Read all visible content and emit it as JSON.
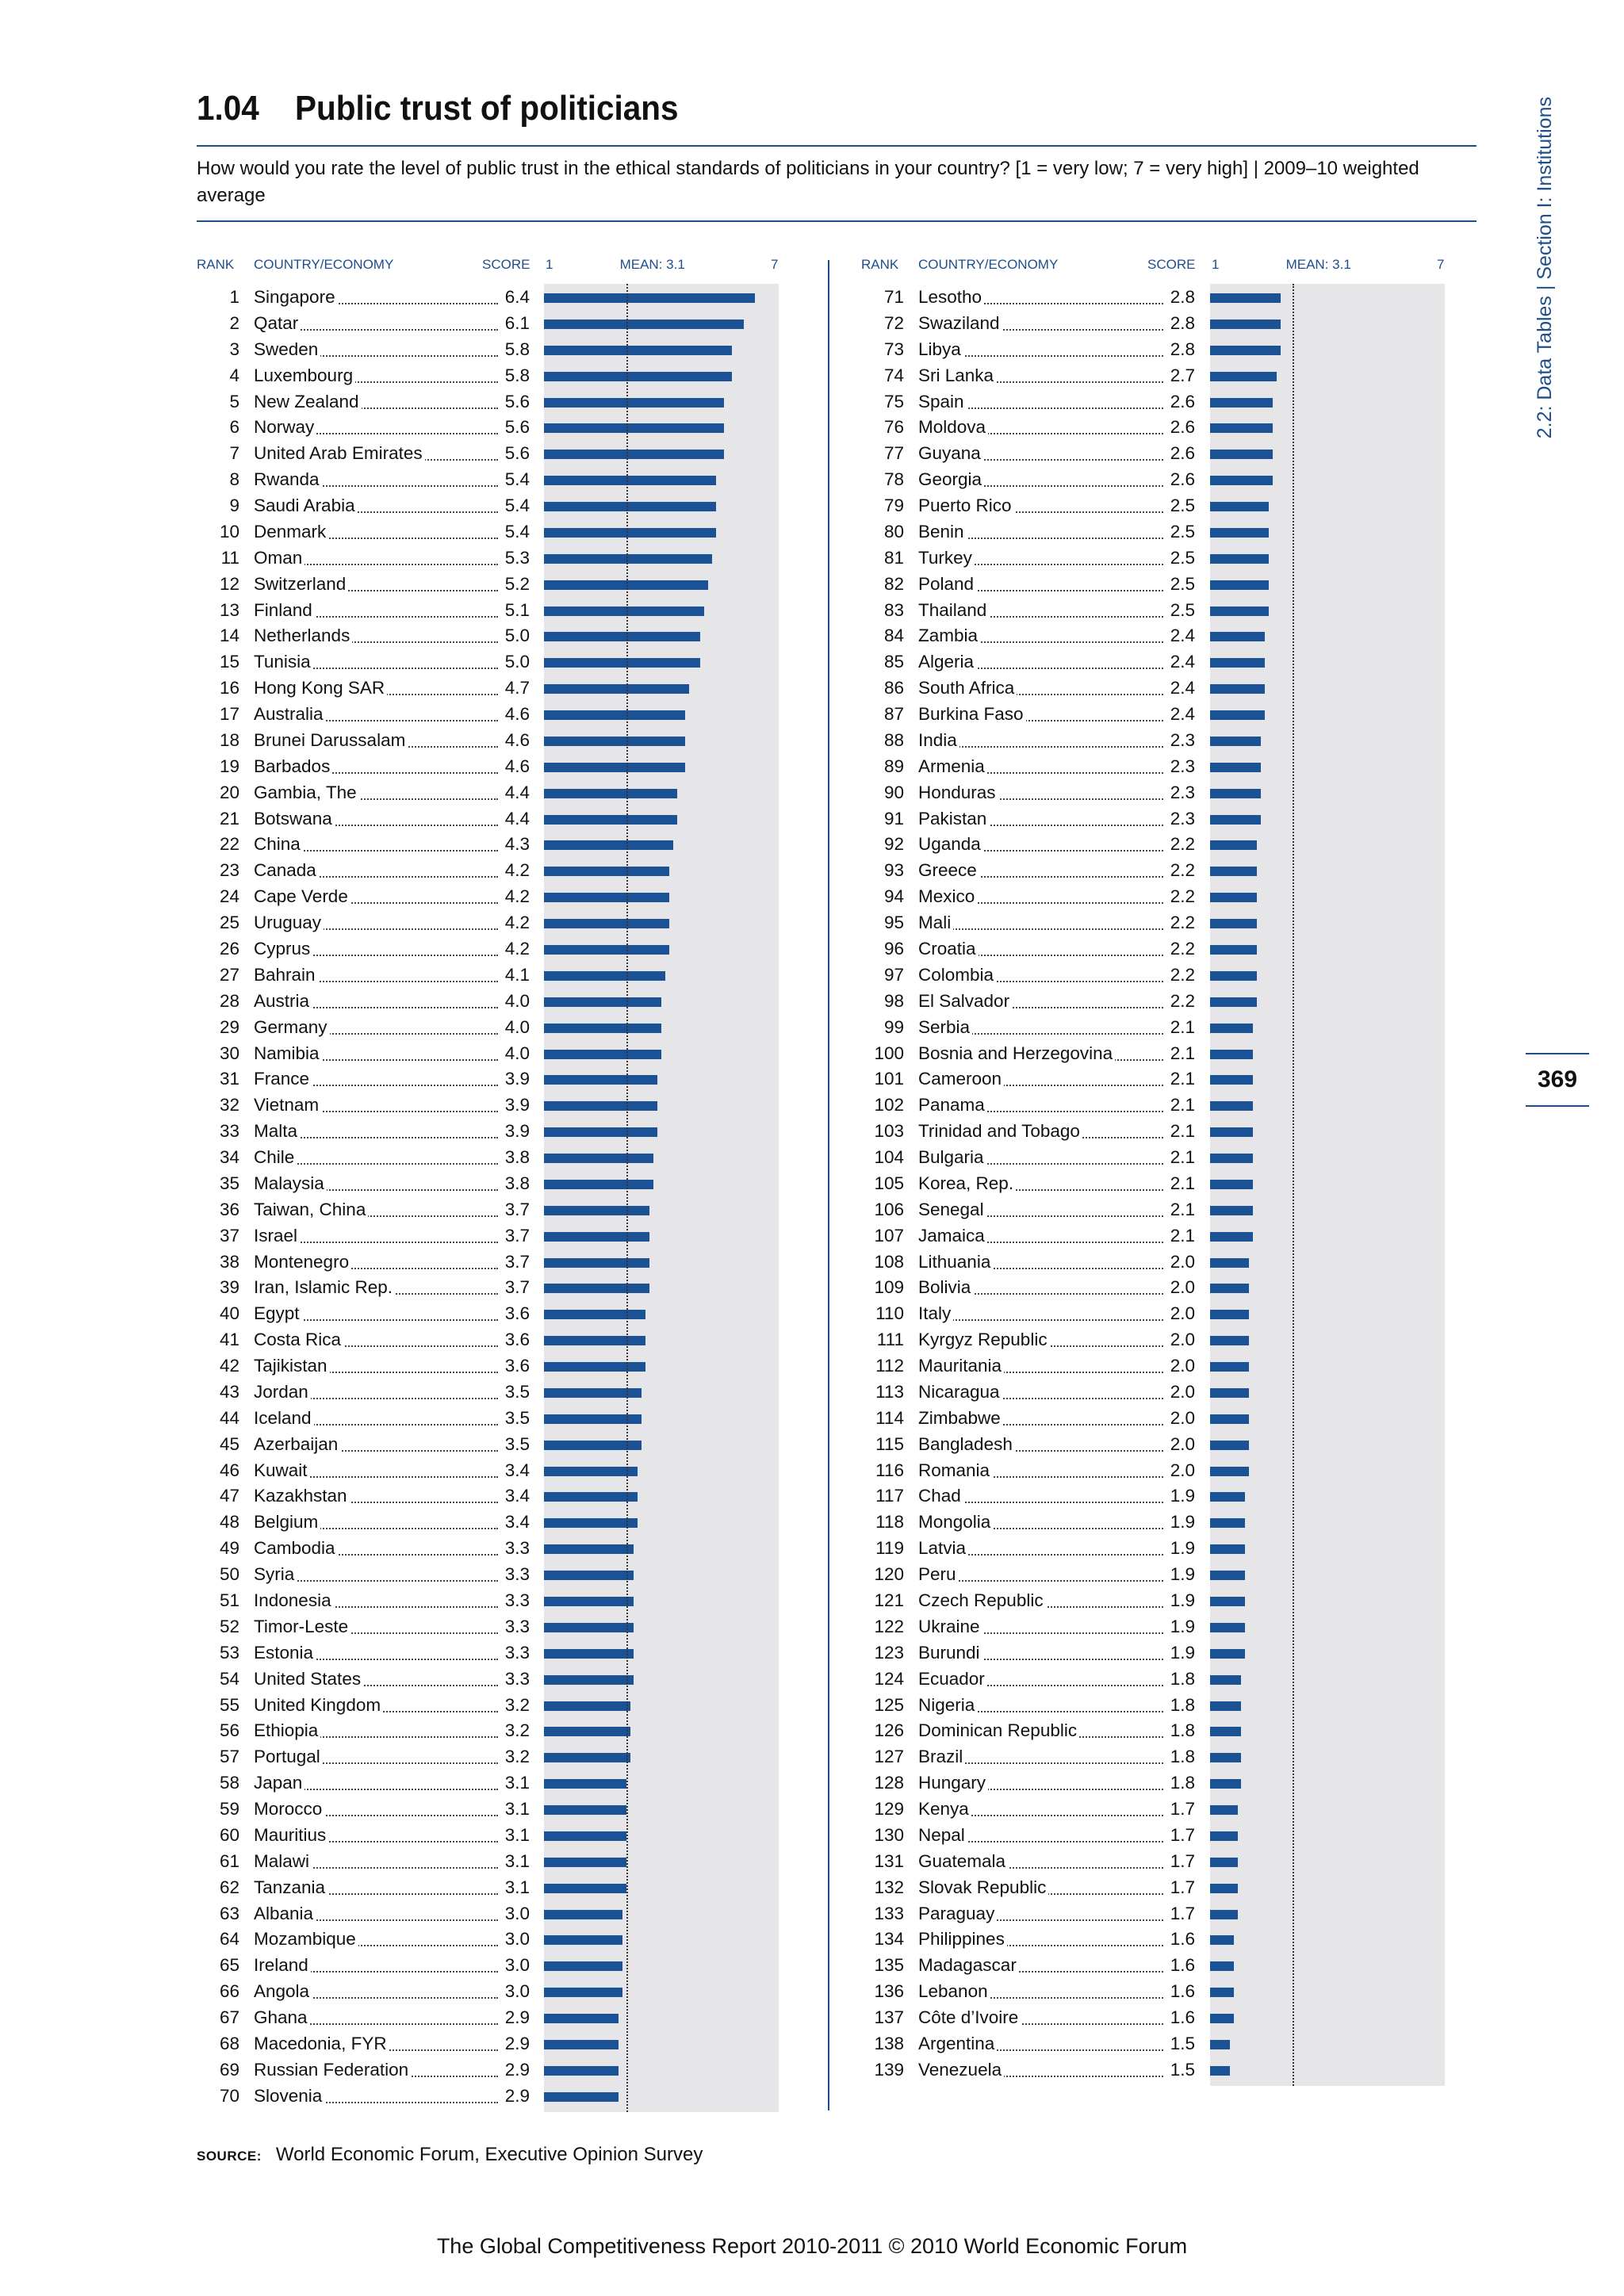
{
  "header": {
    "section_number": "1.04",
    "title": "Public trust of politicians",
    "question": "How would you rate the level of public trust in the ethical standards of politicians in your country? [1 = very low; 7 = very high]  |  2009–10 weighted average",
    "side_label": "2.2: Data Tables  |  Section I: Institutions",
    "page_number": "369"
  },
  "table_headers": {
    "rank": "RANK",
    "country": "COUNTRY/ECONOMY",
    "score": "SCORE",
    "scale_min": "1",
    "mean_label": "MEAN: 3.1",
    "scale_max": "7"
  },
  "scale": {
    "min": 1,
    "max": 7,
    "mean": 3.1
  },
  "colors": {
    "accent": "#1f4e8c",
    "bar": "#1a5295",
    "bar_bg": "#e6e6e9"
  },
  "rows": [
    {
      "rank": "1",
      "country": "Singapore",
      "score": "6.4"
    },
    {
      "rank": "2",
      "country": "Qatar",
      "score": "6.1"
    },
    {
      "rank": "3",
      "country": "Sweden",
      "score": "5.8"
    },
    {
      "rank": "4",
      "country": "Luxembourg",
      "score": "5.8"
    },
    {
      "rank": "5",
      "country": "New Zealand",
      "score": "5.6"
    },
    {
      "rank": "6",
      "country": "Norway",
      "score": "5.6"
    },
    {
      "rank": "7",
      "country": "United Arab Emirates",
      "score": "5.6"
    },
    {
      "rank": "8",
      "country": "Rwanda",
      "score": "5.4"
    },
    {
      "rank": "9",
      "country": "Saudi Arabia",
      "score": "5.4"
    },
    {
      "rank": "10",
      "country": "Denmark",
      "score": "5.4"
    },
    {
      "rank": "11",
      "country": "Oman",
      "score": "5.3"
    },
    {
      "rank": "12",
      "country": "Switzerland",
      "score": "5.2"
    },
    {
      "rank": "13",
      "country": "Finland",
      "score": "5.1"
    },
    {
      "rank": "14",
      "country": "Netherlands",
      "score": "5.0"
    },
    {
      "rank": "15",
      "country": "Tunisia",
      "score": "5.0"
    },
    {
      "rank": "16",
      "country": "Hong Kong SAR",
      "score": "4.7"
    },
    {
      "rank": "17",
      "country": "Australia",
      "score": "4.6"
    },
    {
      "rank": "18",
      "country": "Brunei Darussalam",
      "score": "4.6"
    },
    {
      "rank": "19",
      "country": "Barbados",
      "score": "4.6"
    },
    {
      "rank": "20",
      "country": "Gambia, The",
      "score": "4.4"
    },
    {
      "rank": "21",
      "country": "Botswana",
      "score": "4.4"
    },
    {
      "rank": "22",
      "country": "China",
      "score": "4.3"
    },
    {
      "rank": "23",
      "country": "Canada",
      "score": "4.2"
    },
    {
      "rank": "24",
      "country": "Cape Verde",
      "score": "4.2"
    },
    {
      "rank": "25",
      "country": "Uruguay",
      "score": "4.2"
    },
    {
      "rank": "26",
      "country": "Cyprus",
      "score": "4.2"
    },
    {
      "rank": "27",
      "country": "Bahrain",
      "score": "4.1"
    },
    {
      "rank": "28",
      "country": "Austria",
      "score": "4.0"
    },
    {
      "rank": "29",
      "country": "Germany",
      "score": "4.0"
    },
    {
      "rank": "30",
      "country": "Namibia",
      "score": "4.0"
    },
    {
      "rank": "31",
      "country": "France",
      "score": "3.9"
    },
    {
      "rank": "32",
      "country": "Vietnam",
      "score": "3.9"
    },
    {
      "rank": "33",
      "country": "Malta",
      "score": "3.9"
    },
    {
      "rank": "34",
      "country": "Chile",
      "score": "3.8"
    },
    {
      "rank": "35",
      "country": "Malaysia",
      "score": "3.8"
    },
    {
      "rank": "36",
      "country": "Taiwan, China",
      "score": "3.7"
    },
    {
      "rank": "37",
      "country": "Israel",
      "score": "3.7"
    },
    {
      "rank": "38",
      "country": "Montenegro",
      "score": "3.7"
    },
    {
      "rank": "39",
      "country": "Iran, Islamic Rep.",
      "score": "3.7"
    },
    {
      "rank": "40",
      "country": "Egypt",
      "score": "3.6"
    },
    {
      "rank": "41",
      "country": "Costa Rica",
      "score": "3.6"
    },
    {
      "rank": "42",
      "country": "Tajikistan",
      "score": "3.6"
    },
    {
      "rank": "43",
      "country": "Jordan",
      "score": "3.5"
    },
    {
      "rank": "44",
      "country": "Iceland",
      "score": "3.5"
    },
    {
      "rank": "45",
      "country": "Azerbaijan",
      "score": "3.5"
    },
    {
      "rank": "46",
      "country": "Kuwait",
      "score": "3.4"
    },
    {
      "rank": "47",
      "country": "Kazakhstan",
      "score": "3.4"
    },
    {
      "rank": "48",
      "country": "Belgium",
      "score": "3.4"
    },
    {
      "rank": "49",
      "country": "Cambodia",
      "score": "3.3"
    },
    {
      "rank": "50",
      "country": "Syria",
      "score": "3.3"
    },
    {
      "rank": "51",
      "country": "Indonesia",
      "score": "3.3"
    },
    {
      "rank": "52",
      "country": "Timor-Leste",
      "score": "3.3"
    },
    {
      "rank": "53",
      "country": "Estonia",
      "score": "3.3"
    },
    {
      "rank": "54",
      "country": "United States",
      "score": "3.3"
    },
    {
      "rank": "55",
      "country": "United Kingdom",
      "score": "3.2"
    },
    {
      "rank": "56",
      "country": "Ethiopia",
      "score": "3.2"
    },
    {
      "rank": "57",
      "country": "Portugal",
      "score": "3.2"
    },
    {
      "rank": "58",
      "country": "Japan",
      "score": "3.1"
    },
    {
      "rank": "59",
      "country": "Morocco",
      "score": "3.1"
    },
    {
      "rank": "60",
      "country": "Mauritius",
      "score": "3.1"
    },
    {
      "rank": "61",
      "country": "Malawi",
      "score": "3.1"
    },
    {
      "rank": "62",
      "country": "Tanzania",
      "score": "3.1"
    },
    {
      "rank": "63",
      "country": "Albania",
      "score": "3.0"
    },
    {
      "rank": "64",
      "country": "Mozambique",
      "score": "3.0"
    },
    {
      "rank": "65",
      "country": "Ireland",
      "score": "3.0"
    },
    {
      "rank": "66",
      "country": "Angola",
      "score": "3.0"
    },
    {
      "rank": "67",
      "country": "Ghana",
      "score": "2.9"
    },
    {
      "rank": "68",
      "country": "Macedonia, FYR",
      "score": "2.9"
    },
    {
      "rank": "69",
      "country": "Russian Federation",
      "score": "2.9"
    },
    {
      "rank": "70",
      "country": "Slovenia",
      "score": "2.9"
    },
    {
      "rank": "71",
      "country": "Lesotho",
      "score": "2.8"
    },
    {
      "rank": "72",
      "country": "Swaziland",
      "score": "2.8"
    },
    {
      "rank": "73",
      "country": "Libya",
      "score": "2.8"
    },
    {
      "rank": "74",
      "country": "Sri Lanka",
      "score": "2.7"
    },
    {
      "rank": "75",
      "country": "Spain",
      "score": "2.6"
    },
    {
      "rank": "76",
      "country": "Moldova",
      "score": "2.6"
    },
    {
      "rank": "77",
      "country": "Guyana",
      "score": "2.6"
    },
    {
      "rank": "78",
      "country": "Georgia",
      "score": "2.6"
    },
    {
      "rank": "79",
      "country": "Puerto Rico",
      "score": "2.5"
    },
    {
      "rank": "80",
      "country": "Benin",
      "score": "2.5"
    },
    {
      "rank": "81",
      "country": "Turkey",
      "score": "2.5"
    },
    {
      "rank": "82",
      "country": "Poland",
      "score": "2.5"
    },
    {
      "rank": "83",
      "country": "Thailand",
      "score": "2.5"
    },
    {
      "rank": "84",
      "country": "Zambia",
      "score": "2.4"
    },
    {
      "rank": "85",
      "country": "Algeria",
      "score": "2.4"
    },
    {
      "rank": "86",
      "country": "South Africa",
      "score": "2.4"
    },
    {
      "rank": "87",
      "country": "Burkina Faso",
      "score": "2.4"
    },
    {
      "rank": "88",
      "country": "India",
      "score": "2.3"
    },
    {
      "rank": "89",
      "country": "Armenia",
      "score": "2.3"
    },
    {
      "rank": "90",
      "country": "Honduras",
      "score": "2.3"
    },
    {
      "rank": "91",
      "country": "Pakistan",
      "score": "2.3"
    },
    {
      "rank": "92",
      "country": "Uganda",
      "score": "2.2"
    },
    {
      "rank": "93",
      "country": "Greece",
      "score": "2.2"
    },
    {
      "rank": "94",
      "country": "Mexico",
      "score": "2.2"
    },
    {
      "rank": "95",
      "country": "Mali",
      "score": "2.2"
    },
    {
      "rank": "96",
      "country": "Croatia",
      "score": "2.2"
    },
    {
      "rank": "97",
      "country": "Colombia",
      "score": "2.2"
    },
    {
      "rank": "98",
      "country": "El Salvador",
      "score": "2.2"
    },
    {
      "rank": "99",
      "country": "Serbia",
      "score": "2.1"
    },
    {
      "rank": "100",
      "country": "Bosnia and Herzegovina",
      "score": "2.1"
    },
    {
      "rank": "101",
      "country": "Cameroon",
      "score": "2.1"
    },
    {
      "rank": "102",
      "country": "Panama",
      "score": "2.1"
    },
    {
      "rank": "103",
      "country": "Trinidad and Tobago",
      "score": "2.1"
    },
    {
      "rank": "104",
      "country": "Bulgaria",
      "score": "2.1"
    },
    {
      "rank": "105",
      "country": "Korea, Rep.",
      "score": "2.1"
    },
    {
      "rank": "106",
      "country": "Senegal",
      "score": "2.1"
    },
    {
      "rank": "107",
      "country": "Jamaica",
      "score": "2.1"
    },
    {
      "rank": "108",
      "country": "Lithuania",
      "score": "2.0"
    },
    {
      "rank": "109",
      "country": "Bolivia",
      "score": "2.0"
    },
    {
      "rank": "110",
      "country": "Italy",
      "score": "2.0"
    },
    {
      "rank": "111",
      "country": "Kyrgyz Republic",
      "score": "2.0"
    },
    {
      "rank": "112",
      "country": "Mauritania",
      "score": "2.0"
    },
    {
      "rank": "113",
      "country": "Nicaragua",
      "score": "2.0"
    },
    {
      "rank": "114",
      "country": "Zimbabwe",
      "score": "2.0"
    },
    {
      "rank": "115",
      "country": "Bangladesh",
      "score": "2.0"
    },
    {
      "rank": "116",
      "country": "Romania",
      "score": "2.0"
    },
    {
      "rank": "117",
      "country": "Chad",
      "score": "1.9"
    },
    {
      "rank": "118",
      "country": "Mongolia",
      "score": "1.9"
    },
    {
      "rank": "119",
      "country": "Latvia",
      "score": "1.9"
    },
    {
      "rank": "120",
      "country": "Peru",
      "score": "1.9"
    },
    {
      "rank": "121",
      "country": "Czech Republic",
      "score": "1.9"
    },
    {
      "rank": "122",
      "country": "Ukraine",
      "score": "1.9"
    },
    {
      "rank": "123",
      "country": "Burundi",
      "score": "1.9"
    },
    {
      "rank": "124",
      "country": "Ecuador",
      "score": "1.8"
    },
    {
      "rank": "125",
      "country": "Nigeria",
      "score": "1.8"
    },
    {
      "rank": "126",
      "country": "Dominican Republic",
      "score": "1.8"
    },
    {
      "rank": "127",
      "country": "Brazil",
      "score": "1.8"
    },
    {
      "rank": "128",
      "country": "Hungary",
      "score": "1.8"
    },
    {
      "rank": "129",
      "country": "Kenya",
      "score": "1.7"
    },
    {
      "rank": "130",
      "country": "Nepal",
      "score": "1.7"
    },
    {
      "rank": "131",
      "country": "Guatemala",
      "score": "1.7"
    },
    {
      "rank": "132",
      "country": "Slovak Republic",
      "score": "1.7"
    },
    {
      "rank": "133",
      "country": "Paraguay",
      "score": "1.7"
    },
    {
      "rank": "134",
      "country": "Philippines",
      "score": "1.6"
    },
    {
      "rank": "135",
      "country": "Madagascar",
      "score": "1.6"
    },
    {
      "rank": "136",
      "country": "Lebanon",
      "score": "1.6"
    },
    {
      "rank": "137",
      "country": "Côte d’Ivoire",
      "score": "1.6"
    },
    {
      "rank": "138",
      "country": "Argentina",
      "score": "1.5"
    },
    {
      "rank": "139",
      "country": "Venezuela",
      "score": "1.5"
    }
  ],
  "source": {
    "label": "SOURCE:",
    "text": "World Economic Forum, Executive Opinion Survey"
  },
  "footer": "The Global Competitiveness Report 2010-2011 © 2010 World Economic Forum"
}
